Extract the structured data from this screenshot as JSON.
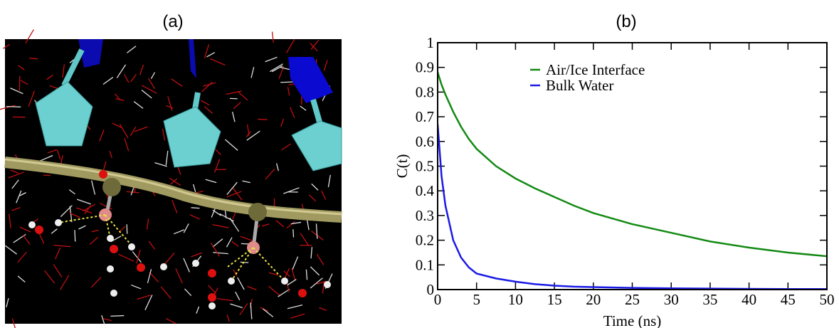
{
  "image_panel": {
    "label": "(a)"
  },
  "chart_data": {
    "type": "line",
    "title": "(b)",
    "xlabel": "Time (ns)",
    "ylabel": "C(t)",
    "x": [
      0,
      0.5,
      1,
      2,
      3,
      4,
      5,
      7.5,
      10,
      12.5,
      15,
      17.5,
      20,
      25,
      30,
      35,
      40,
      45,
      50
    ],
    "series": [
      {
        "name": "Air/Ice Interface",
        "color": "#138a13",
        "values": [
          0.88,
          0.83,
          0.79,
          0.72,
          0.66,
          0.61,
          0.57,
          0.5,
          0.45,
          0.41,
          0.375,
          0.34,
          0.31,
          0.265,
          0.23,
          0.195,
          0.17,
          0.15,
          0.135
        ]
      },
      {
        "name": "Bulk Water",
        "color": "#1a1ae6",
        "values": [
          0.67,
          0.46,
          0.34,
          0.2,
          0.13,
          0.09,
          0.065,
          0.045,
          0.032,
          0.022,
          0.016,
          0.012,
          0.01,
          0.007,
          0.005,
          0.004,
          0.003,
          0.002,
          0.002
        ]
      }
    ],
    "xlim": [
      0,
      50
    ],
    "xticks": [
      0,
      5,
      10,
      15,
      20,
      25,
      30,
      35,
      40,
      45,
      50
    ],
    "ylim": [
      0,
      1
    ],
    "yticks": [
      0,
      0.1,
      0.2,
      0.3,
      0.4,
      0.5,
      0.6,
      0.7,
      0.8,
      0.9,
      1
    ],
    "legend": "upper center",
    "grid": false
  }
}
